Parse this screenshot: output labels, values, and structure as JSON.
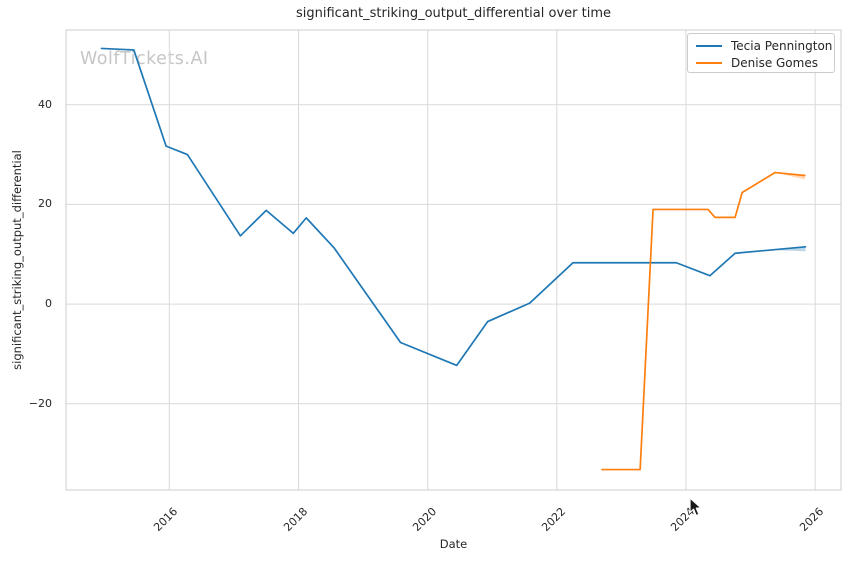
{
  "watermark": "WolfTickets.AI",
  "colors": {
    "series_blue": "#1f77b4",
    "series_orange": "#ff7f0e",
    "grid": "#d9d9d9",
    "spine": "#cccccc",
    "text": "#262626",
    "watermark": "#c6c6c8"
  },
  "icons": {
    "cursor": "mouse-pointer-icon"
  },
  "legend": {
    "items": [
      {
        "label": "Tecia Pennington",
        "color": "#1f77b4"
      },
      {
        "label": "Denise Gomes",
        "color": "#ff7f0e"
      }
    ]
  },
  "chart_data": {
    "type": "line",
    "title": "significant_striking_output_differential over time",
    "xlabel": "Date",
    "ylabel": "significant_striking_output_differential",
    "grid": true,
    "legend_position": "upper right",
    "xlim": [
      2014.4,
      2026.4
    ],
    "ylim": [
      -37.3,
      55.0
    ],
    "x_tick_values": [
      2016,
      2018,
      2020,
      2022,
      2024,
      2026
    ],
    "x_tick_labels": [
      "2016",
      "2018",
      "2020",
      "2022",
      "2024",
      "2026"
    ],
    "y_tick_values": [
      40,
      20,
      0,
      -20
    ],
    "y_tick_labels": [
      "40",
      "20",
      "0",
      "−20"
    ],
    "series": [
      {
        "name": "Tecia Pennington",
        "color": "#1f77b4",
        "x": [
          2014.95,
          2015.45,
          2015.95,
          2016.28,
          2017.1,
          2017.5,
          2017.92,
          2018.12,
          2018.55,
          2019.58,
          2020.45,
          2020.93,
          2021.58,
          2022.25,
          2023.85,
          2024.37,
          2024.76,
          2025.85
        ],
        "y": [
          51.3,
          51.0,
          31.7,
          30.0,
          13.7,
          18.8,
          14.2,
          17.3,
          11.3,
          -7.7,
          -12.3,
          -3.5,
          0.2,
          8.3,
          8.3,
          5.7,
          10.2,
          11.5
        ],
        "ci_band": {
          "x": [
            2025.3,
            2025.85
          ],
          "upper": [
            10.85,
            11.5
          ],
          "lower": [
            10.85,
            10.6
          ]
        }
      },
      {
        "name": "Denise Gomes",
        "color": "#ff7f0e",
        "x": [
          2022.7,
          2023.29,
          2023.49,
          2024.34,
          2024.45,
          2024.76,
          2024.87,
          2025.38,
          2025.84
        ],
        "y": [
          -33.2,
          -33.2,
          19.0,
          19.0,
          17.4,
          17.4,
          22.4,
          26.4,
          25.8
        ],
        "ci_band": {
          "x": [
            2025.38,
            2025.84
          ],
          "upper": [
            26.4,
            25.8
          ],
          "lower": [
            26.4,
            25.0
          ]
        }
      }
    ]
  }
}
